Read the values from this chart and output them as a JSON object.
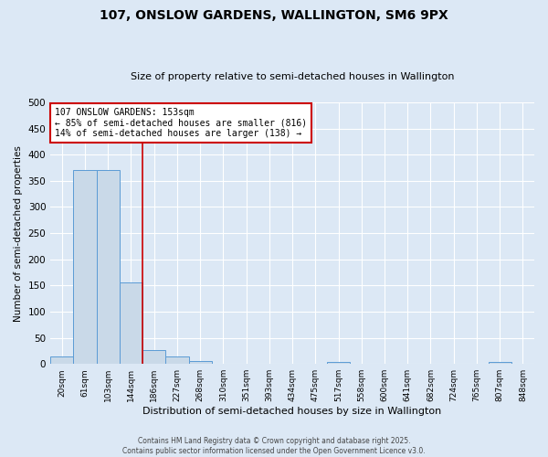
{
  "title1": "107, ONSLOW GARDENS, WALLINGTON, SM6 9PX",
  "title2": "Size of property relative to semi-detached houses in Wallington",
  "xlabel": "Distribution of semi-detached houses by size in Wallington",
  "ylabel": "Number of semi-detached properties",
  "footer1": "Contains HM Land Registry data © Crown copyright and database right 2025.",
  "footer2": "Contains public sector information licensed under the Open Government Licence v3.0.",
  "bin_labels": [
    "20sqm",
    "61sqm",
    "103sqm",
    "144sqm",
    "186sqm",
    "227sqm",
    "268sqm",
    "310sqm",
    "351sqm",
    "393sqm",
    "434sqm",
    "475sqm",
    "517sqm",
    "558sqm",
    "600sqm",
    "641sqm",
    "682sqm",
    "724sqm",
    "765sqm",
    "807sqm",
    "848sqm"
  ],
  "bar_values": [
    14,
    370,
    370,
    155,
    26,
    14,
    5,
    0,
    0,
    0,
    0,
    0,
    4,
    0,
    0,
    0,
    0,
    0,
    0,
    4,
    0
  ],
  "bar_color": "#c9d9e8",
  "bar_edge_color": "#5b9bd5",
  "property_bin_index": 3,
  "red_line_label": "107 ONSLOW GARDENS: 153sqm",
  "annotation1": "← 85% of semi-detached houses are smaller (816)",
  "annotation2": "14% of semi-detached houses are larger (138) →",
  "annotation_box_color": "#ffffff",
  "annotation_box_edge": "#cc0000",
  "red_line_color": "#cc0000",
  "ylim": [
    0,
    500
  ],
  "yticks": [
    0,
    50,
    100,
    150,
    200,
    250,
    300,
    350,
    400,
    450,
    500
  ],
  "background_color": "#dce8f5",
  "plot_bg_color": "#dce8f5",
  "title_fontsize": 10,
  "subtitle_fontsize": 8
}
